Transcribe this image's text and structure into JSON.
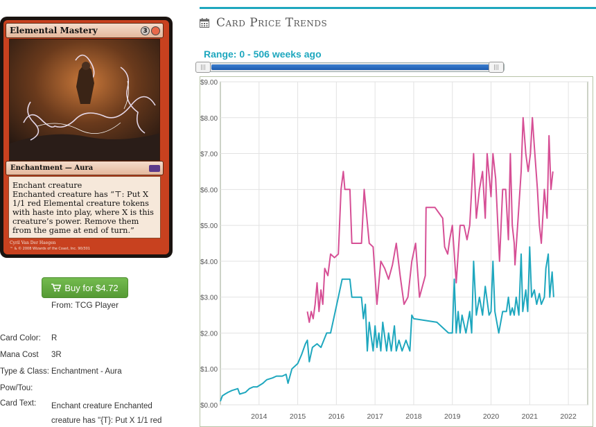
{
  "card": {
    "name": "Elemental Mastery",
    "mana_cost_symbols": [
      "3",
      "R"
    ],
    "type_line": "Enchantment — Aura",
    "rules_text_line1": "Enchant creature",
    "rules_text_line2": "Enchanted creature has “⊤: Put X 1/1 red Elemental creature tokens with haste into play, where X is this creature’s power. Remove them from the game at end of turn.”",
    "artist": "Cyril Van Der Haegen",
    "copyright": "™ & © 2008 Wizards of the Coast, Inc. 90/301"
  },
  "buy": {
    "label": "Buy for $4.72",
    "icon": "shopping-cart-icon",
    "from": "From: TCG Player",
    "color": "#62aa40"
  },
  "props": [
    {
      "label": "Card Color:",
      "value": "R"
    },
    {
      "label": "Mana Cost",
      "value": "3R"
    },
    {
      "label": "Type & Class:",
      "value": "Enchantment - Aura"
    },
    {
      "label": "Pow/Tou:",
      "value": ""
    },
    {
      "label": "Card Text:",
      "value": "Enchant creature Enchanted creature has \"{T}: Put X 1/1 red"
    }
  ],
  "section": {
    "title": "Card Price Trends",
    "icon": "calendar-icon",
    "accent": "#1ea7be"
  },
  "range": {
    "label": "Range: 0 - 506 weeks ago",
    "min_weeks": 0,
    "max_weeks": 506
  },
  "chart_data": {
    "type": "line",
    "ylim": [
      0,
      9
    ],
    "xlim": [
      2013.0,
      2022.5
    ],
    "y_ticks": [
      "$0.00",
      "$1.00",
      "$2.00",
      "$3.00",
      "$4.00",
      "$5.00",
      "$6.00",
      "$7.00",
      "$8.00",
      "$9.00"
    ],
    "x_ticks": [
      "2014",
      "2015",
      "2016",
      "2017",
      "2018",
      "2019",
      "2020",
      "2021",
      "2022"
    ],
    "grid": true,
    "series": [
      {
        "color": "#d64f95",
        "points": [
          [
            2015.25,
            2.6
          ],
          [
            2015.3,
            2.3
          ],
          [
            2015.35,
            2.6
          ],
          [
            2015.4,
            2.4
          ],
          [
            2015.45,
            2.8
          ],
          [
            2015.5,
            3.4
          ],
          [
            2015.55,
            2.6
          ],
          [
            2015.6,
            3.2
          ],
          [
            2015.65,
            2.8
          ],
          [
            2015.7,
            3.8
          ],
          [
            2015.78,
            3.6
          ],
          [
            2015.85,
            4.2
          ],
          [
            2015.95,
            4.1
          ],
          [
            2016.05,
            4.2
          ],
          [
            2016.12,
            6.0
          ],
          [
            2016.18,
            6.5
          ],
          [
            2016.22,
            6.0
          ],
          [
            2016.35,
            6.0
          ],
          [
            2016.4,
            4.5
          ],
          [
            2016.65,
            4.5
          ],
          [
            2016.72,
            6.0
          ],
          [
            2016.85,
            4.5
          ],
          [
            2016.95,
            4.4
          ],
          [
            2017.05,
            2.8
          ],
          [
            2017.15,
            4.0
          ],
          [
            2017.25,
            3.8
          ],
          [
            2017.35,
            3.5
          ],
          [
            2017.45,
            3.9
          ],
          [
            2017.55,
            4.5
          ],
          [
            2017.65,
            3.6
          ],
          [
            2017.75,
            2.8
          ],
          [
            2017.85,
            3.0
          ],
          [
            2017.95,
            4.0
          ],
          [
            2018.05,
            4.5
          ],
          [
            2018.15,
            3.0
          ],
          [
            2018.3,
            3.6
          ],
          [
            2018.32,
            5.5
          ],
          [
            2018.55,
            5.5
          ],
          [
            2018.75,
            5.2
          ],
          [
            2018.8,
            4.4
          ],
          [
            2018.88,
            4.2
          ],
          [
            2018.93,
            4.6
          ],
          [
            2019.0,
            5.0
          ],
          [
            2019.1,
            3.4
          ],
          [
            2019.2,
            5.0
          ],
          [
            2019.3,
            5.0
          ],
          [
            2019.38,
            4.6
          ],
          [
            2019.45,
            5.0
          ],
          [
            2019.55,
            7.0
          ],
          [
            2019.62,
            5.2
          ],
          [
            2019.7,
            6.0
          ],
          [
            2019.78,
            6.5
          ],
          [
            2019.85,
            5.2
          ],
          [
            2019.9,
            7.0
          ],
          [
            2020.0,
            5.8
          ],
          [
            2020.05,
            7.0
          ],
          [
            2020.12,
            6.3
          ],
          [
            2020.22,
            4.0
          ],
          [
            2020.3,
            6.0
          ],
          [
            2020.38,
            6.0
          ],
          [
            2020.45,
            4.6
          ],
          [
            2020.5,
            7.0
          ],
          [
            2020.55,
            5.0
          ],
          [
            2020.6,
            4.5
          ],
          [
            2020.62,
            3.9
          ],
          [
            2020.7,
            5.2
          ],
          [
            2020.78,
            6.5
          ],
          [
            2020.83,
            8.0
          ],
          [
            2020.9,
            7.0
          ],
          [
            2020.96,
            6.5
          ],
          [
            2021.02,
            7.0
          ],
          [
            2021.07,
            8.0
          ],
          [
            2021.12,
            7.2
          ],
          [
            2021.2,
            6.0
          ],
          [
            2021.25,
            5.0
          ],
          [
            2021.3,
            4.5
          ],
          [
            2021.38,
            6.0
          ],
          [
            2021.45,
            5.2
          ],
          [
            2021.5,
            7.5
          ],
          [
            2021.55,
            6.0
          ],
          [
            2021.6,
            6.5
          ]
        ]
      },
      {
        "color": "#1ea7be",
        "points": [
          [
            2013.0,
            0.1
          ],
          [
            2013.05,
            0.25
          ],
          [
            2013.12,
            0.3
          ],
          [
            2013.2,
            0.35
          ],
          [
            2013.3,
            0.4
          ],
          [
            2013.45,
            0.45
          ],
          [
            2013.5,
            0.3
          ],
          [
            2013.65,
            0.35
          ],
          [
            2013.75,
            0.45
          ],
          [
            2013.85,
            0.5
          ],
          [
            2013.95,
            0.5
          ],
          [
            2014.1,
            0.6
          ],
          [
            2014.2,
            0.7
          ],
          [
            2014.35,
            0.75
          ],
          [
            2014.45,
            0.8
          ],
          [
            2014.6,
            0.8
          ],
          [
            2014.7,
            0.85
          ],
          [
            2014.75,
            0.6
          ],
          [
            2014.85,
            1.0
          ],
          [
            2015.0,
            1.15
          ],
          [
            2015.1,
            1.4
          ],
          [
            2015.2,
            1.7
          ],
          [
            2015.25,
            1.8
          ],
          [
            2015.3,
            1.2
          ],
          [
            2015.38,
            1.6
          ],
          [
            2015.5,
            1.7
          ],
          [
            2015.6,
            1.6
          ],
          [
            2015.75,
            2.0
          ],
          [
            2015.85,
            2.0
          ],
          [
            2015.95,
            2.5
          ],
          [
            2016.05,
            3.0
          ],
          [
            2016.15,
            3.5
          ],
          [
            2016.35,
            3.5
          ],
          [
            2016.4,
            3.0
          ],
          [
            2016.65,
            3.0
          ],
          [
            2016.7,
            2.4
          ],
          [
            2016.75,
            2.8
          ],
          [
            2016.8,
            1.5
          ],
          [
            2016.85,
            2.3
          ],
          [
            2016.95,
            1.5
          ],
          [
            2017.0,
            2.2
          ],
          [
            2017.05,
            1.6
          ],
          [
            2017.1,
            2.0
          ],
          [
            2017.15,
            1.5
          ],
          [
            2017.2,
            2.3
          ],
          [
            2017.3,
            1.5
          ],
          [
            2017.35,
            2.0
          ],
          [
            2017.42,
            1.5
          ],
          [
            2017.5,
            2.2
          ],
          [
            2017.55,
            1.5
          ],
          [
            2017.62,
            1.8
          ],
          [
            2017.7,
            1.5
          ],
          [
            2017.8,
            1.8
          ],
          [
            2017.9,
            1.5
          ],
          [
            2017.95,
            2.5
          ],
          [
            2018.0,
            2.4
          ],
          [
            2018.6,
            2.3
          ],
          [
            2018.9,
            2.0
          ],
          [
            2019.0,
            2.0
          ],
          [
            2019.05,
            3.5
          ],
          [
            2019.1,
            2.0
          ],
          [
            2019.15,
            2.6
          ],
          [
            2019.2,
            2.0
          ],
          [
            2019.25,
            2.5
          ],
          [
            2019.35,
            2.0
          ],
          [
            2019.45,
            2.6
          ],
          [
            2019.5,
            2.0
          ],
          [
            2019.55,
            4.0
          ],
          [
            2019.62,
            2.5
          ],
          [
            2019.7,
            3.0
          ],
          [
            2019.78,
            2.5
          ],
          [
            2019.85,
            3.3
          ],
          [
            2019.95,
            2.5
          ],
          [
            2020.0,
            2.6
          ],
          [
            2020.05,
            4.0
          ],
          [
            2020.1,
            2.6
          ],
          [
            2020.2,
            2.0
          ],
          [
            2020.3,
            2.6
          ],
          [
            2020.4,
            2.6
          ],
          [
            2020.45,
            3.0
          ],
          [
            2020.5,
            2.5
          ],
          [
            2020.55,
            2.7
          ],
          [
            2020.6,
            2.5
          ],
          [
            2020.65,
            3.0
          ],
          [
            2020.72,
            2.5
          ],
          [
            2020.78,
            4.2
          ],
          [
            2020.82,
            2.6
          ],
          [
            2020.9,
            3.2
          ],
          [
            2020.95,
            2.6
          ],
          [
            2021.0,
            4.4
          ],
          [
            2021.05,
            3.0
          ],
          [
            2021.12,
            3.2
          ],
          [
            2021.18,
            2.8
          ],
          [
            2021.25,
            3.1
          ],
          [
            2021.3,
            2.8
          ],
          [
            2021.38,
            3.0
          ],
          [
            2021.42,
            3.8
          ],
          [
            2021.48,
            4.2
          ],
          [
            2021.52,
            3.0
          ],
          [
            2021.58,
            3.7
          ],
          [
            2021.62,
            3.0
          ]
        ]
      }
    ]
  }
}
